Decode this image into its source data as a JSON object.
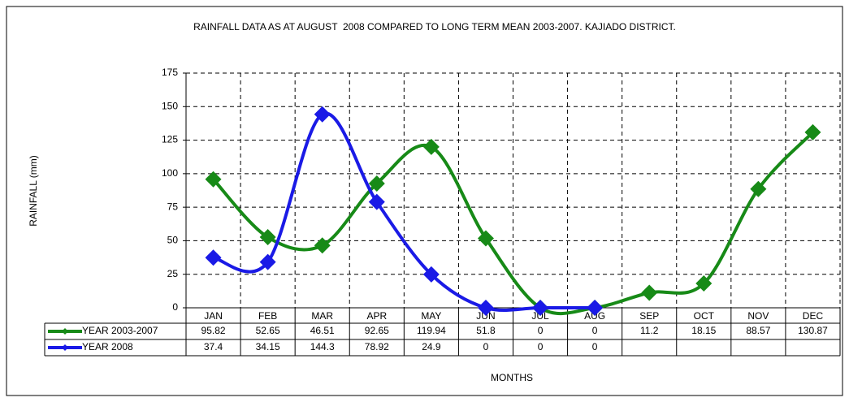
{
  "chart_data": {
    "type": "line",
    "title": "RAINFALL DATA AS AT AUGUST  2008 COMPARED TO LONG TERM MEAN 2003-2007. KAJIADO DISTRICT.",
    "y_label": "RAINFALL (mm)",
    "x_label": "MONTHS",
    "categories": [
      "JAN",
      "FEB",
      "MAR",
      "APR",
      "MAY",
      "JUN",
      "JUL",
      "AUG",
      "SEP",
      "OCT",
      "NOV",
      "DEC"
    ],
    "series": [
      {
        "name": "YEAR 2003-2007",
        "color": "#178a17",
        "values": [
          95.82,
          52.65,
          46.51,
          92.65,
          119.94,
          51.8,
          0,
          0,
          11.2,
          18.15,
          88.57,
          130.87
        ]
      },
      {
        "name": "YEAR 2008",
        "color": "#1a1ae6",
        "values": [
          37.4,
          34.15,
          144.3,
          78.92,
          24.9,
          0,
          0,
          0,
          null,
          null,
          null,
          null
        ]
      }
    ],
    "ylim": [
      0,
      175
    ],
    "yticks": [
      0,
      25,
      50,
      75,
      100,
      125,
      150,
      175
    ],
    "grid": true,
    "smooth": true,
    "data_table": true
  }
}
